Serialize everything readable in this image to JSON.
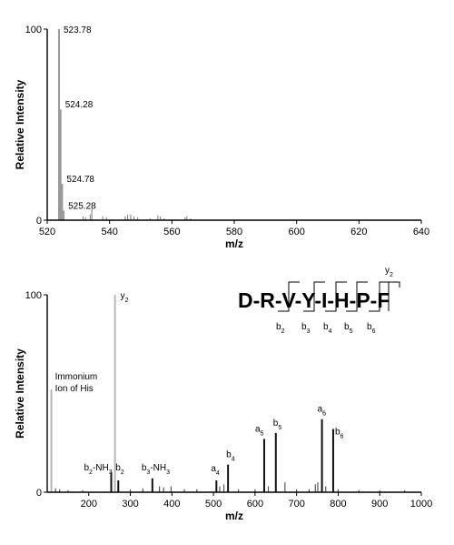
{
  "chart_data": [
    {
      "type": "bar",
      "xlabel": "m/z",
      "ylabel": "Relative Intensity",
      "xlim": [
        520,
        640
      ],
      "ylim": [
        0,
        100
      ],
      "xticks": [
        520,
        540,
        560,
        580,
        600,
        620,
        640
      ],
      "yticks": [
        0,
        100
      ],
      "grid": false,
      "peaks": [
        {
          "x": 523.78,
          "y": 100,
          "label": "523.78"
        },
        {
          "x": 524.28,
          "y": 58,
          "label": "524.28"
        },
        {
          "x": 524.78,
          "y": 19,
          "label": "524.78"
        },
        {
          "x": 525.28,
          "y": 5,
          "label": "525.28"
        },
        {
          "x": 531.5,
          "y": 2
        },
        {
          "x": 532.3,
          "y": 1.5
        },
        {
          "x": 533.8,
          "y": 3
        },
        {
          "x": 534.3,
          "y": 6
        },
        {
          "x": 537.8,
          "y": 2
        },
        {
          "x": 539.0,
          "y": 1.5
        },
        {
          "x": 545.0,
          "y": 2
        },
        {
          "x": 545.8,
          "y": 3
        },
        {
          "x": 546.8,
          "y": 3
        },
        {
          "x": 547.8,
          "y": 2
        },
        {
          "x": 549.0,
          "y": 1.5
        },
        {
          "x": 553.0,
          "y": 1
        },
        {
          "x": 555.5,
          "y": 2.5
        },
        {
          "x": 556.3,
          "y": 2
        },
        {
          "x": 557.5,
          "y": 1
        },
        {
          "x": 564.2,
          "y": 1.5
        },
        {
          "x": 564.8,
          "y": 2
        },
        {
          "x": 566.0,
          "y": 1
        }
      ]
    },
    {
      "type": "bar",
      "xlabel": "m/z",
      "ylabel": "Relative Intensity",
      "xlim": [
        100,
        1000
      ],
      "ylim": [
        0,
        100
      ],
      "xticks": [
        200,
        300,
        400,
        500,
        600,
        700,
        800,
        900,
        1000
      ],
      "yticks": [
        0,
        100
      ],
      "grid": false,
      "peaks": [
        {
          "x": 110,
          "y": 52,
          "label": "Immonium\nIon of His"
        },
        {
          "x": 120,
          "y": 2
        },
        {
          "x": 130,
          "y": 1.5
        },
        {
          "x": 150,
          "y": 1
        },
        {
          "x": 185,
          "y": 1
        },
        {
          "x": 254,
          "y": 10,
          "label": "b2-NH3"
        },
        {
          "x": 263,
          "y": 100,
          "label": "y2"
        },
        {
          "x": 271,
          "y": 6,
          "label": "b2"
        },
        {
          "x": 300,
          "y": 1.5
        },
        {
          "x": 330,
          "y": 2
        },
        {
          "x": 353,
          "y": 7,
          "label": "b3-NH3"
        },
        {
          "x": 370,
          "y": 3
        },
        {
          "x": 380,
          "y": 2.5
        },
        {
          "x": 398,
          "y": 3
        },
        {
          "x": 430,
          "y": 1.5
        },
        {
          "x": 460,
          "y": 1.5
        },
        {
          "x": 507,
          "y": 6,
          "label": "a4"
        },
        {
          "x": 515,
          "y": 3
        },
        {
          "x": 525,
          "y": 4
        },
        {
          "x": 535,
          "y": 14,
          "label": "b4"
        },
        {
          "x": 560,
          "y": 1.5
        },
        {
          "x": 600,
          "y": 1.5
        },
        {
          "x": 622,
          "y": 27,
          "label": "a5"
        },
        {
          "x": 632,
          "y": 3
        },
        {
          "x": 650,
          "y": 30,
          "label": "b5"
        },
        {
          "x": 672,
          "y": 5
        },
        {
          "x": 700,
          "y": 1.5
        },
        {
          "x": 730,
          "y": 1.5
        },
        {
          "x": 745,
          "y": 4
        },
        {
          "x": 751,
          "y": 5
        },
        {
          "x": 761,
          "y": 37,
          "label": "a6"
        },
        {
          "x": 770,
          "y": 3
        },
        {
          "x": 788,
          "y": 32,
          "label": "b6"
        },
        {
          "x": 800,
          "y": 1.5
        },
        {
          "x": 850,
          "y": 1
        },
        {
          "x": 900,
          "y": 1
        },
        {
          "x": 960,
          "y": 1
        }
      ],
      "peptide_sequence": [
        "D",
        "R",
        "V",
        "Y",
        "I",
        "H",
        "P",
        "F"
      ],
      "sequence_text": "D-R-V-Y-I-H-P-F",
      "b_ions": [
        "b2",
        "b3",
        "b4",
        "b5",
        "b6"
      ],
      "y_ions": [
        "y2"
      ]
    }
  ]
}
